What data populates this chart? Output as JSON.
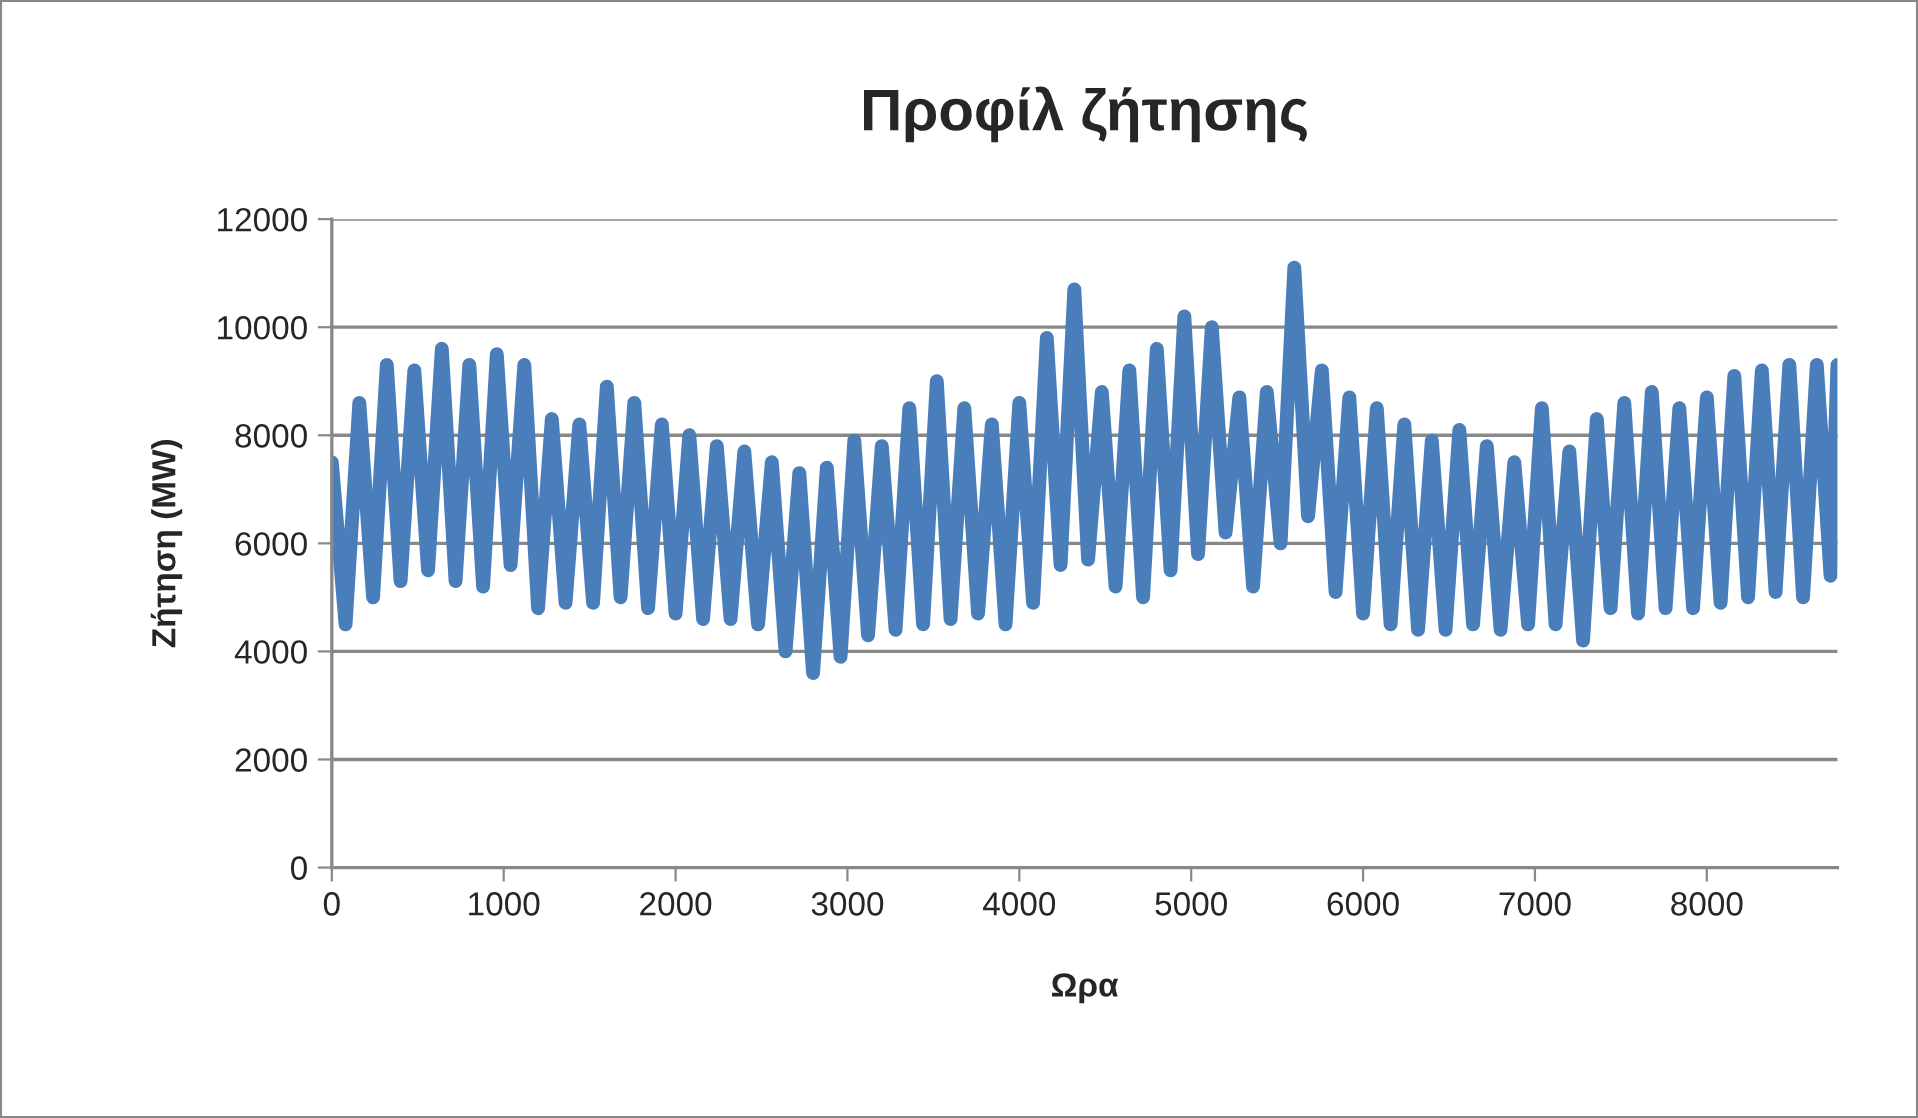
{
  "chart_data": {
    "type": "line",
    "title": "Προφίλ ζήτησης",
    "xlabel": "Ωρα",
    "ylabel": "Ζήτηση (MW)",
    "x": [
      0,
      80,
      160,
      240,
      320,
      400,
      480,
      560,
      640,
      720,
      800,
      880,
      960,
      1040,
      1120,
      1200,
      1280,
      1360,
      1440,
      1520,
      1600,
      1680,
      1760,
      1840,
      1920,
      2000,
      2080,
      2160,
      2240,
      2320,
      2400,
      2480,
      2560,
      2640,
      2720,
      2800,
      2880,
      2960,
      3040,
      3120,
      3200,
      3280,
      3360,
      3440,
      3520,
      3600,
      3680,
      3760,
      3840,
      3920,
      4000,
      4080,
      4160,
      4240,
      4320,
      4400,
      4480,
      4560,
      4640,
      4720,
      4800,
      4880,
      4960,
      5040,
      5120,
      5200,
      5280,
      5360,
      5440,
      5520,
      5600,
      5680,
      5760,
      5840,
      5920,
      6000,
      6080,
      6160,
      6240,
      6320,
      6400,
      6480,
      6560,
      6640,
      6720,
      6800,
      6880,
      6960,
      7040,
      7120,
      7200,
      7280,
      7360,
      7440,
      7520,
      7600,
      7680,
      7760,
      7840,
      7920,
      8000,
      8080,
      8160,
      8240,
      8320,
      8400,
      8480,
      8560,
      8640,
      8720,
      8760
    ],
    "series": [
      {
        "color": "#4a7ebb",
        "values": [
          7500,
          4500,
          8600,
          5000,
          9300,
          5300,
          9200,
          5500,
          9600,
          5300,
          9300,
          5200,
          9500,
          5600,
          9300,
          4800,
          8300,
          4900,
          8200,
          4900,
          8900,
          5000,
          8600,
          4800,
          8200,
          4700,
          8000,
          4600,
          7800,
          4600,
          7700,
          4500,
          7500,
          4000,
          7300,
          3600,
          7400,
          3900,
          7900,
          4300,
          7800,
          4400,
          8500,
          4500,
          9000,
          4600,
          8500,
          4700,
          8200,
          4500,
          8600,
          4900,
          9800,
          5600,
          10700,
          5700,
          8800,
          5200,
          9200,
          5000,
          9600,
          5500,
          10200,
          5800,
          10000,
          6200,
          8700,
          5200,
          8800,
          6000,
          11100,
          6500,
          9200,
          5100,
          8700,
          4700,
          8500,
          4500,
          8200,
          4400,
          7900,
          4400,
          8100,
          4500,
          7800,
          4400,
          7500,
          4500,
          8500,
          4500,
          7700,
          4200,
          8300,
          4800,
          8600,
          4700,
          8800,
          4800,
          8500,
          4800,
          8700,
          4900,
          9100,
          5000,
          9200,
          5100,
          9300,
          5000,
          9300,
          5400,
          9300
        ]
      }
    ],
    "xlim": [
      0,
      8760
    ],
    "xticks": [
      0,
      1000,
      2000,
      3000,
      4000,
      5000,
      6000,
      7000,
      8000
    ],
    "ylim": [
      0,
      12000
    ],
    "yticks": [
      0,
      2000,
      4000,
      6000,
      8000,
      10000,
      12000
    ],
    "grid": "y",
    "marker": "none",
    "line_style": "solid"
  }
}
